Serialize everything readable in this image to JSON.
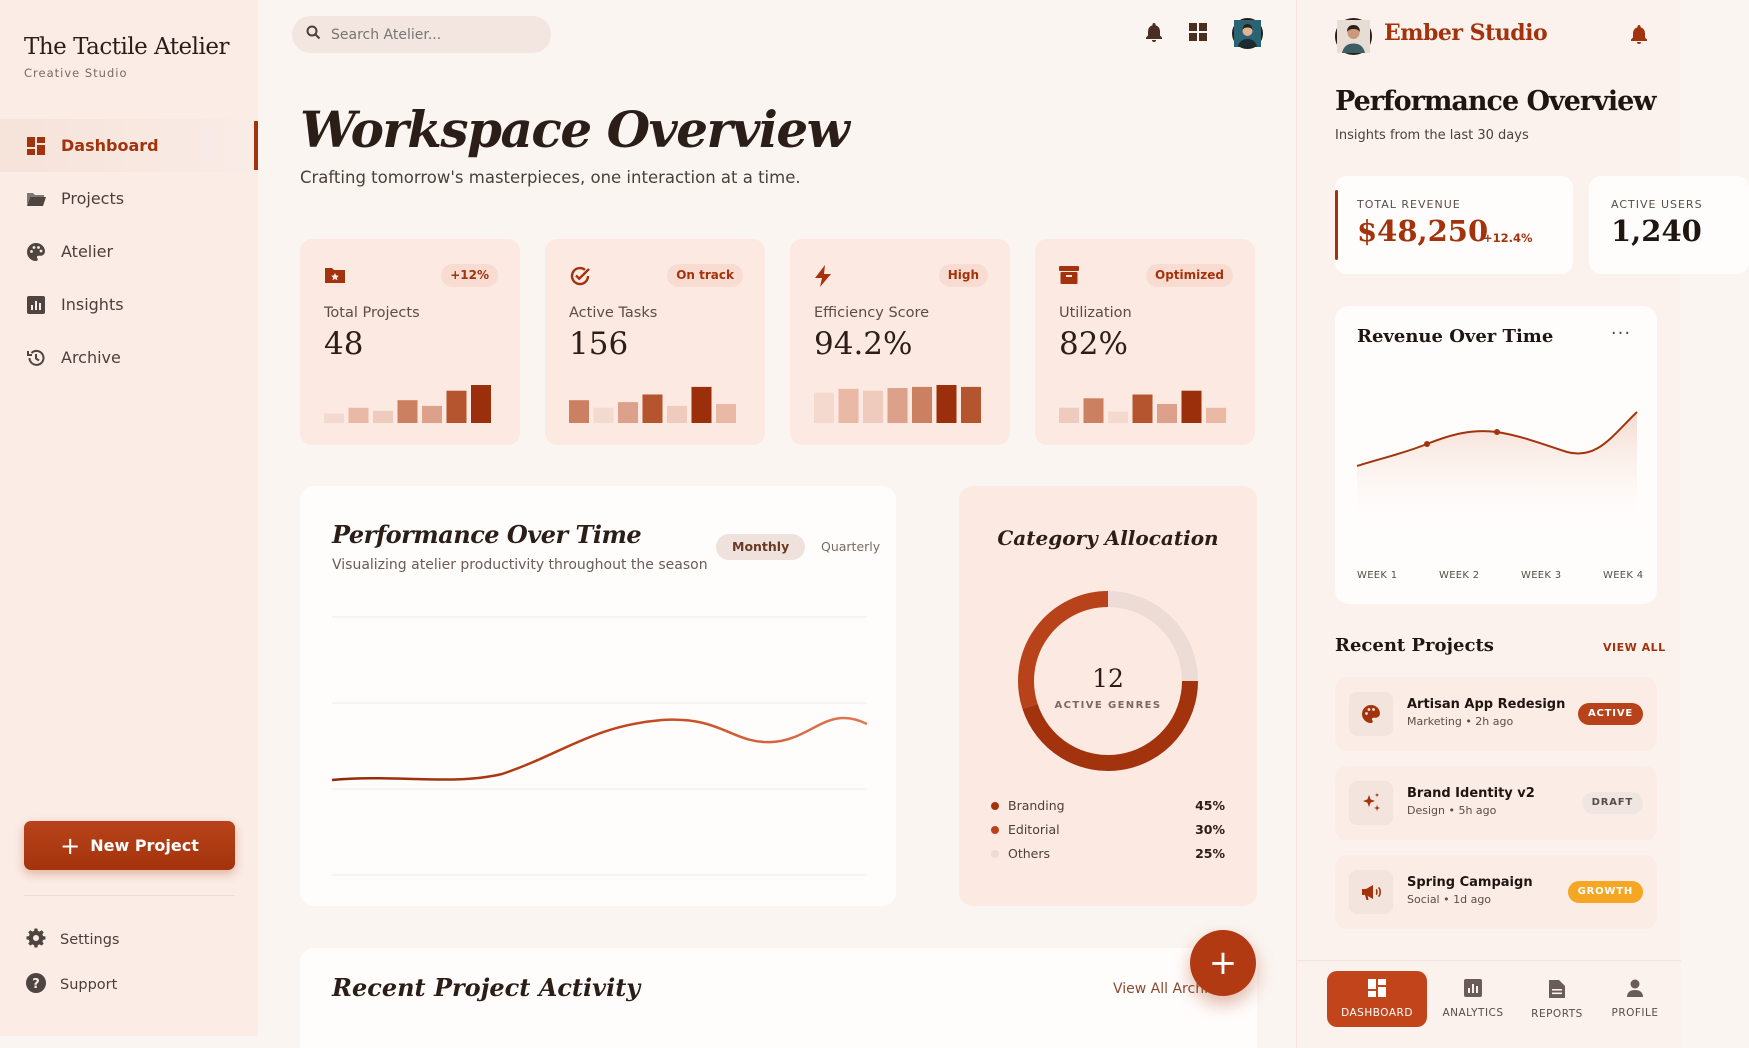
{
  "sidebar": {
    "brand": "The Tactile Atelier",
    "tagline": "Creative Studio",
    "items": [
      {
        "label": "Dashboard",
        "icon": "dashboard-icon"
      },
      {
        "label": "Projects",
        "icon": "folder-icon"
      },
      {
        "label": "Atelier",
        "icon": "palette-icon"
      },
      {
        "label": "Insights",
        "icon": "chart-icon"
      },
      {
        "label": "Archive",
        "icon": "history-icon"
      }
    ],
    "new_project_label": "New Project",
    "settings_label": "Settings",
    "support_label": "Support"
  },
  "topbar": {
    "search_placeholder": "Search Atelier..."
  },
  "main": {
    "title": "Workspace Overview",
    "subtitle": "Crafting tomorrow's masterpieces, one interaction at a time."
  },
  "stats": [
    {
      "label": "Total Projects",
      "value": "48",
      "badge": "+12%",
      "icon": "folder-star-icon",
      "bars": [
        0.25,
        0.4,
        0.32,
        0.6,
        0.45,
        0.85,
        1.0
      ]
    },
    {
      "label": "Active Tasks",
      "value": "156",
      "badge": "On track",
      "icon": "check-circle-icon",
      "bars": [
        0.6,
        0.4,
        0.55,
        0.75,
        0.45,
        0.95,
        0.5
      ]
    },
    {
      "label": "Efficiency Score",
      "value": "94.2%",
      "badge": "High",
      "icon": "bolt-icon",
      "bars": [
        0.8,
        0.9,
        0.85,
        0.92,
        0.95,
        1.0,
        0.95
      ]
    },
    {
      "label": "Utilization",
      "value": "82%",
      "badge": "Optimized",
      "icon": "archive-box-icon",
      "bars": [
        0.4,
        0.65,
        0.3,
        0.75,
        0.5,
        0.85,
        0.4
      ]
    }
  ],
  "performance": {
    "title": "Performance Over Time",
    "subtitle": "Visualizing atelier productivity throughout the season",
    "toggle_monthly": "Monthly",
    "toggle_quarterly": "Quarterly"
  },
  "category": {
    "title": "Category Allocation",
    "center_value": "12",
    "center_label": "ACTIVE GENRES",
    "legend": [
      {
        "name": "Branding",
        "pct": "45%",
        "color": "#a3330c"
      },
      {
        "name": "Editorial",
        "pct": "30%",
        "color": "#b8431a"
      },
      {
        "name": "Others",
        "pct": "25%",
        "color": "#ecdcd5"
      }
    ]
  },
  "activity": {
    "title": "Recent Project Activity",
    "link": "View All Archive"
  },
  "mobile": {
    "brand": "Ember Studio",
    "title": "Performance Overview",
    "subtitle": "Insights from the last 30 days",
    "kpis": [
      {
        "label": "TOTAL REVENUE",
        "value": "$48,250",
        "delta": "+12.4%"
      },
      {
        "label": "ACTIVE USERS",
        "value": "1,240",
        "delta": ""
      }
    ],
    "revenue_title": "Revenue Over Time",
    "more_label": "···",
    "weeks": [
      "WEEK 1",
      "WEEK 2",
      "WEEK 3",
      "WEEK 4"
    ],
    "recent_title": "Recent Projects",
    "view_all": "VIEW ALL",
    "projects": [
      {
        "name": "Artisan App Redesign",
        "meta": "Marketing • 2h ago",
        "badge": "ACTIVE",
        "icon": "palette-icon"
      },
      {
        "name": "Brand Identity v2",
        "meta": "Design • 5h ago",
        "badge": "DRAFT",
        "icon": "sparkle-icon"
      },
      {
        "name": "Spring Campaign",
        "meta": "Social • 1d ago",
        "badge": "GROWTH",
        "icon": "megaphone-icon"
      }
    ],
    "nav": [
      "DASHBOARD",
      "ANALYTICS",
      "REPORTS",
      "PROFILE"
    ]
  },
  "colors": {
    "accent": "#a3330c",
    "accent_light": "#f8dcd1",
    "background": "#fbf5f1",
    "growth_badge": "#f5a623"
  }
}
